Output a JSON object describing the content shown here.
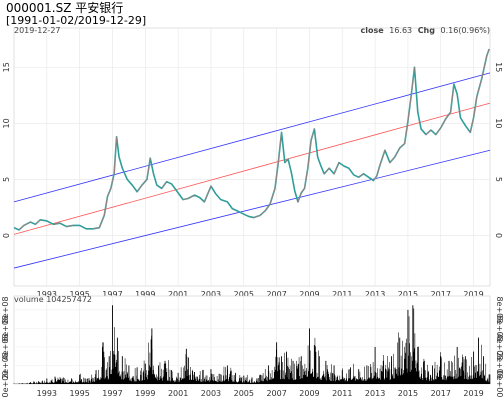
{
  "chart_data": {
    "type": "line",
    "title": "000001.SZ 平安银行",
    "date_range": "[1991-01-02/2019-12-29]",
    "last_date": "2019-12-27",
    "legend": {
      "close_label": "close",
      "close_value": "16.63",
      "chg_label": "Chg",
      "chg_value": "0.16(0.96%)"
    },
    "x_ticks": [
      "1993",
      "1995",
      "1997",
      "1999",
      "2001",
      "2003",
      "2005",
      "2007",
      "2009",
      "2011",
      "2013",
      "2015",
      "2017",
      "2019"
    ],
    "x_tick_years": [
      1993,
      1995,
      1997,
      1999,
      2001,
      2003,
      2005,
      2007,
      2009,
      2011,
      2013,
      2015,
      2017,
      2019
    ],
    "xlim": [
      1991.0,
      2020.0
    ],
    "ylim": [
      -4.5,
      18.5
    ],
    "y_ticks": [
      "0",
      "5",
      "10",
      "15"
    ],
    "y_tick_values": [
      0,
      5,
      10,
      15
    ],
    "grid": true,
    "colors": {
      "price_line": "#2f9e9a",
      "price_up": "#e07070",
      "center_line": "#ff5555",
      "band_lines": "#3333ff",
      "volume": "#000000"
    },
    "channel": {
      "center": {
        "start": [
          1991.0,
          0.1
        ],
        "end": [
          2020.0,
          11.8
        ]
      },
      "upper": {
        "start": [
          1991.0,
          3.0
        ],
        "end": [
          2020.0,
          14.5
        ]
      },
      "lower": {
        "start": [
          1991.0,
          -2.9
        ],
        "end": [
          2020.0,
          7.6
        ]
      }
    },
    "series": [
      {
        "x": [
          1991.0,
          1991.3,
          1991.6,
          1992.0,
          1992.3,
          1992.6,
          1993.0,
          1993.4,
          1993.8,
          1994.2,
          1994.6,
          1995.0,
          1995.4,
          1995.8,
          1996.2,
          1996.5,
          1996.7,
          1996.9,
          1997.1,
          1997.25,
          1997.4,
          1997.6,
          1997.9,
          1998.2,
          1998.5,
          1998.8,
          1999.1,
          1999.3,
          1999.5,
          1999.7,
          2000.0,
          2000.3,
          2000.6,
          2001.0,
          2001.3,
          2001.6,
          2002.0,
          2002.3,
          2002.6,
          2003.0,
          2003.3,
          2003.6,
          2004.0,
          2004.3,
          2004.6,
          2005.0,
          2005.3,
          2005.6,
          2006.0,
          2006.3,
          2006.6,
          2006.9,
          2007.1,
          2007.3,
          2007.5,
          2007.7,
          2007.9,
          2008.1,
          2008.3,
          2008.5,
          2008.7,
          2008.9,
          2009.1,
          2009.3,
          2009.5,
          2009.7,
          2009.9,
          2010.2,
          2010.5,
          2010.8,
          2011.1,
          2011.4,
          2011.7,
          2012.0,
          2012.3,
          2012.6,
          2012.9,
          2013.1,
          2013.3,
          2013.6,
          2013.9,
          2014.2,
          2014.5,
          2014.8,
          2015.0,
          2015.2,
          2015.4,
          2015.6,
          2015.8,
          2016.1,
          2016.4,
          2016.7,
          2017.0,
          2017.3,
          2017.6,
          2017.8,
          2018.0,
          2018.2,
          2018.5,
          2018.8,
          2019.0,
          2019.2,
          2019.5,
          2019.8,
          2019.95
        ],
        "y": [
          0.7,
          0.5,
          0.9,
          1.2,
          1.0,
          1.4,
          1.3,
          1.0,
          1.1,
          0.8,
          0.9,
          0.9,
          0.6,
          0.6,
          0.7,
          1.8,
          3.5,
          4.2,
          5.5,
          8.8,
          7.0,
          6.0,
          5.0,
          4.5,
          3.9,
          4.5,
          5.0,
          6.9,
          5.5,
          4.5,
          4.2,
          4.8,
          4.6,
          3.8,
          3.2,
          3.3,
          3.6,
          3.4,
          3.0,
          4.4,
          3.7,
          3.2,
          3.0,
          2.4,
          2.2,
          1.9,
          1.7,
          1.6,
          1.8,
          2.2,
          2.8,
          4.2,
          6.5,
          9.2,
          6.5,
          6.8,
          5.6,
          4.0,
          3.0,
          3.8,
          4.2,
          6.0,
          8.5,
          9.5,
          7.0,
          6.2,
          5.5,
          6.0,
          5.5,
          6.5,
          6.2,
          6.0,
          5.4,
          5.2,
          5.5,
          5.2,
          4.9,
          5.3,
          6.3,
          7.6,
          6.5,
          7.0,
          7.8,
          8.2,
          10.2,
          12.5,
          15.0,
          11.0,
          9.5,
          9.0,
          9.4,
          9.0,
          9.6,
          10.4,
          11.0,
          13.5,
          12.6,
          10.5,
          9.8,
          9.2,
          10.5,
          12.4,
          14.0,
          16.0,
          16.63
        ]
      }
    ],
    "volume": {
      "label": "volume",
      "last_value": "104257472",
      "y_ticks": [
        "0e+00",
        "2e+08",
        "4e+08",
        "6e+08",
        "8e+08"
      ],
      "y_tick_values": [
        0,
        200000000,
        400000000,
        600000000,
        800000000
      ],
      "ylim": [
        0,
        950000000
      ],
      "x": [
        1991.0,
        1991.5,
        1992.0,
        1992.5,
        1993.0,
        1993.5,
        1994.0,
        1994.5,
        1995.0,
        1995.5,
        1996.0,
        1996.4,
        1996.8,
        1997.0,
        1997.3,
        1997.6,
        1998.0,
        1998.5,
        1999.0,
        1999.4,
        1999.8,
        2000.2,
        2000.6,
        2001.0,
        2001.5,
        2002.0,
        2002.5,
        2003.0,
        2003.5,
        2004.0,
        2004.5,
        2005.0,
        2005.5,
        2006.0,
        2006.5,
        2007.0,
        2007.3,
        2007.6,
        2008.0,
        2008.5,
        2009.0,
        2009.3,
        2009.6,
        2010.0,
        2010.5,
        2011.0,
        2011.5,
        2012.0,
        2012.5,
        2013.0,
        2013.5,
        2014.0,
        2014.5,
        2015.0,
        2015.3,
        2015.6,
        2016.0,
        2016.5,
        2017.0,
        2017.5,
        2018.0,
        2018.5,
        2019.0,
        2019.3,
        2019.6,
        2019.95
      ],
      "values": [
        5000000,
        10000000,
        20000000,
        30000000,
        60000000,
        80000000,
        70000000,
        60000000,
        100000000,
        60000000,
        150000000,
        400000000,
        300000000,
        850000000,
        500000000,
        300000000,
        200000000,
        180000000,
        220000000,
        600000000,
        200000000,
        250000000,
        150000000,
        120000000,
        380000000,
        130000000,
        150000000,
        160000000,
        110000000,
        200000000,
        120000000,
        90000000,
        70000000,
        100000000,
        200000000,
        450000000,
        300000000,
        350000000,
        250000000,
        300000000,
        600000000,
        420000000,
        300000000,
        250000000,
        200000000,
        150000000,
        180000000,
        160000000,
        200000000,
        400000000,
        250000000,
        300000000,
        500000000,
        800000000,
        850000000,
        400000000,
        250000000,
        200000000,
        300000000,
        250000000,
        400000000,
        300000000,
        350000000,
        500000000,
        300000000,
        104257472
      ]
    }
  }
}
